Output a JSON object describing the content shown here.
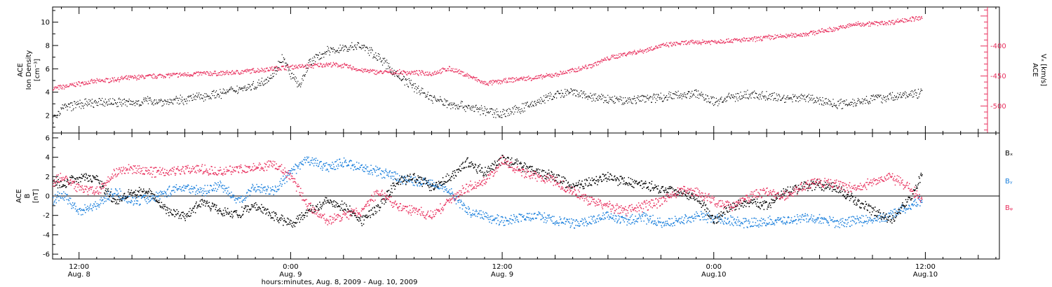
{
  "footer_label": "hours:minutes, Aug.  8, 2009 - Aug. 10, 2009",
  "colors": {
    "black": "#000000",
    "pink": "#e8305e",
    "blue": "#1a7fdc"
  },
  "chart_data": [
    {
      "type": "scatter",
      "title": "",
      "xlabel": "hours:minutes, Aug.  8, 2009 - Aug. 10, 2009",
      "x_range_hours": [
        10.5,
        64.2
      ],
      "x_ticks": [
        {
          "hour": 12,
          "label": "12:00",
          "sublabel": "Aug. 8"
        },
        {
          "hour": 24,
          "label": "0:00",
          "sublabel": "Aug. 9"
        },
        {
          "hour": 36,
          "label": "12:00",
          "sublabel": "Aug. 9"
        },
        {
          "hour": 48,
          "label": "0:00",
          "sublabel": "Aug.10"
        },
        {
          "hour": 60,
          "label": "12:00",
          "sublabel": "Aug.10"
        }
      ],
      "left_axis": {
        "label_lines": [
          "ACE",
          "Ion Density",
          "[cm⁻³]"
        ],
        "ylim": [
          0.5,
          11.3
        ],
        "ticks": [
          "2",
          "4",
          "6",
          "8",
          "10"
        ]
      },
      "right_axis": {
        "label_lines": [
          "ACE",
          "Vₓ [km/s]"
        ],
        "ylim": [
          -545,
          -335
        ],
        "ticks": [
          "-400",
          "-450",
          "-500"
        ],
        "color": "#e8305e"
      },
      "series": [
        {
          "axis": "left",
          "color": "#000000",
          "x": [
            10.5,
            11,
            12,
            13,
            14,
            15,
            16,
            17,
            18,
            19,
            20,
            21,
            22,
            23,
            23.5,
            24,
            24.5,
            25,
            26,
            27,
            28,
            29,
            30,
            31,
            32,
            33,
            34,
            35,
            36,
            37,
            38,
            39,
            40,
            41,
            42,
            43,
            44,
            45,
            46,
            47,
            48,
            49,
            50,
            51,
            52,
            53,
            54,
            55,
            56,
            57,
            58,
            59,
            59.8
          ],
          "y": [
            1.6,
            2.7,
            3.0,
            3.1,
            3.2,
            3.1,
            3.3,
            3.2,
            3.4,
            3.7,
            3.9,
            4.3,
            4.6,
            5.5,
            7.0,
            5.5,
            4.5,
            6.5,
            7.5,
            7.8,
            8.0,
            7.0,
            5.5,
            4.5,
            3.5,
            3.0,
            2.8,
            2.4,
            2.2,
            2.6,
            3.2,
            3.8,
            4.0,
            3.6,
            3.4,
            3.3,
            3.5,
            3.6,
            3.8,
            3.9,
            3.2,
            3.6,
            3.8,
            3.7,
            3.5,
            3.6,
            3.3,
            3.0,
            3.2,
            3.5,
            3.6,
            3.8,
            4.0
          ]
        },
        {
          "axis": "right",
          "color": "#e8305e",
          "x": [
            10.5,
            11,
            12,
            13,
            14,
            15,
            16,
            17,
            18,
            19,
            20,
            21,
            22,
            23,
            24,
            25,
            26,
            27,
            28,
            29,
            30,
            31,
            32,
            33,
            34,
            35,
            36,
            37,
            38,
            39,
            40,
            41,
            42,
            43,
            44,
            45,
            46,
            47,
            48,
            49,
            50,
            51,
            52,
            53,
            54,
            55,
            56,
            57,
            58,
            59,
            59.8
          ],
          "y": [
            -470,
            -468,
            -462,
            -458,
            -455,
            -452,
            -450,
            -448,
            -447,
            -445,
            -445,
            -443,
            -440,
            -437,
            -434,
            -433,
            -430,
            -432,
            -440,
            -443,
            -443,
            -444,
            -445,
            -437,
            -448,
            -462,
            -458,
            -454,
            -452,
            -447,
            -440,
            -432,
            -420,
            -412,
            -407,
            -399,
            -395,
            -393,
            -392,
            -390,
            -389,
            -385,
            -383,
            -380,
            -375,
            -370,
            -363,
            -362,
            -360,
            -355,
            -353
          ]
        }
      ]
    },
    {
      "type": "scatter",
      "title": "",
      "left_axis": {
        "label_lines": [
          "ACE",
          "B",
          "[nT]"
        ],
        "ylim": [
          -6.5,
          6.5
        ],
        "ticks": [
          "6",
          "4",
          "2",
          "0",
          "-2",
          "-4",
          "-6"
        ]
      },
      "legend_position": "right",
      "series": [
        {
          "name": "Bₓ",
          "color": "#000000",
          "x": [
            10.5,
            11,
            12,
            13,
            14,
            15,
            16,
            17,
            18,
            19,
            20,
            21,
            22,
            23,
            24,
            25,
            26,
            27,
            28,
            29,
            30,
            31,
            32,
            33,
            34,
            35,
            36,
            37,
            38,
            39,
            40,
            41,
            42,
            43,
            44,
            45,
            46,
            47,
            48,
            49,
            50,
            51,
            52,
            53,
            54,
            55,
            56,
            57,
            58,
            59,
            59.8
          ],
          "y": [
            1.5,
            1.2,
            2.0,
            1.8,
            -0.5,
            0.5,
            0.3,
            -1.5,
            -2.0,
            -0.5,
            -1.5,
            -1.8,
            -1.0,
            -2.0,
            -2.8,
            -1.5,
            -0.5,
            -1.0,
            -2.5,
            -1.0,
            1.5,
            2.0,
            1.0,
            2.0,
            3.5,
            2.5,
            3.8,
            3.2,
            2.5,
            2.0,
            1.0,
            1.5,
            2.0,
            1.5,
            1.2,
            0.8,
            0.5,
            0.0,
            -2.5,
            -1.0,
            -0.5,
            -1.0,
            0.5,
            1.0,
            1.2,
            0.8,
            -0.5,
            -1.5,
            -2.5,
            -0.5,
            2.2
          ]
        },
        {
          "name": "Bᵧ",
          "color": "#1a7fdc",
          "x": [
            10.5,
            11,
            12,
            13,
            14,
            15,
            16,
            17,
            18,
            19,
            20,
            21,
            22,
            23,
            24,
            25,
            26,
            27,
            28,
            29,
            30,
            31,
            32,
            33,
            34,
            35,
            36,
            37,
            38,
            39,
            40,
            41,
            42,
            43,
            44,
            45,
            46,
            47,
            48,
            49,
            50,
            51,
            52,
            53,
            54,
            55,
            56,
            57,
            58,
            59,
            59.8
          ],
          "y": [
            -0.5,
            0.3,
            -1.5,
            -0.8,
            0.5,
            -0.5,
            -0.2,
            0.5,
            1.0,
            0.5,
            1.2,
            -0.5,
            1.0,
            0.5,
            2.5,
            3.8,
            3.0,
            3.5,
            3.0,
            2.5,
            2.0,
            1.5,
            1.5,
            0.5,
            -1.5,
            -2.0,
            -2.5,
            -2.2,
            -2.0,
            -2.5,
            -2.8,
            -2.5,
            -2.0,
            -2.5,
            -2.2,
            -2.8,
            -2.5,
            -2.0,
            -2.3,
            -2.5,
            -2.8,
            -2.6,
            -2.5,
            -2.2,
            -2.4,
            -2.7,
            -2.5,
            -2.4,
            -2.0,
            -1.0,
            -0.5
          ]
        },
        {
          "name": "Bᵩ",
          "color": "#e8305e",
          "x": [
            10.5,
            11,
            12,
            13,
            14,
            15,
            16,
            17,
            18,
            19,
            20,
            21,
            22,
            23,
            24,
            25,
            26,
            27,
            28,
            29,
            30,
            31,
            32,
            33,
            34,
            35,
            36,
            37,
            38,
            39,
            40,
            41,
            42,
            43,
            44,
            45,
            46,
            47,
            48,
            49,
            50,
            51,
            52,
            53,
            54,
            55,
            56,
            57,
            58,
            59,
            59.8
          ],
          "y": [
            1.5,
            2.0,
            0.8,
            0.5,
            2.5,
            2.8,
            2.5,
            2.6,
            2.8,
            2.8,
            2.6,
            2.8,
            3.0,
            3.3,
            2.0,
            -1.0,
            -2.5,
            -2.0,
            -1.5,
            0.5,
            -1.0,
            -1.5,
            -2.0,
            -0.5,
            1.0,
            1.5,
            3.8,
            2.5,
            2.0,
            1.5,
            0.5,
            -0.5,
            -1.0,
            -1.5,
            -1.0,
            -0.5,
            0.5,
            0.5,
            -0.5,
            -1.0,
            0.0,
            0.5,
            0.0,
            1.0,
            1.5,
            1.2,
            0.8,
            1.5,
            2.0,
            1.0,
            -0.3
          ]
        }
      ]
    }
  ]
}
